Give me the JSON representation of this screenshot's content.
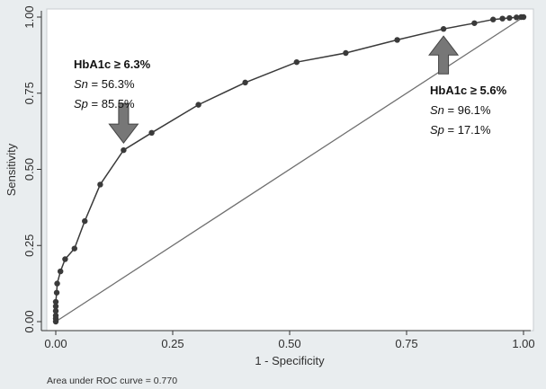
{
  "chart_data": {
    "type": "line",
    "title": "",
    "xlabel": "1 - Specificity",
    "ylabel": "Sensitivity",
    "xlim": [
      0,
      1
    ],
    "ylim": [
      0,
      1
    ],
    "xticks": [
      "0.00",
      "0.25",
      "0.50",
      "0.75",
      "1.00"
    ],
    "yticks": [
      "0.00",
      "0.25",
      "0.50",
      "0.75",
      "1.00"
    ],
    "grid": false,
    "legend": "none",
    "note": "Area under ROC curve = 0.770",
    "series": [
      {
        "type": "line",
        "points": [
          [
            0.0,
            0.0
          ],
          [
            0.0,
            0.01
          ],
          [
            0.0,
            0.02
          ],
          [
            0.0,
            0.035
          ],
          [
            0.0,
            0.05
          ],
          [
            0.0,
            0.065
          ],
          [
            0.002,
            0.095
          ],
          [
            0.003,
            0.125
          ],
          [
            0.01,
            0.165
          ],
          [
            0.02,
            0.205
          ],
          [
            0.04,
            0.24
          ],
          [
            0.062,
            0.33
          ],
          [
            0.095,
            0.45
          ],
          [
            0.145,
            0.563
          ],
          [
            0.205,
            0.62
          ],
          [
            0.305,
            0.712
          ],
          [
            0.405,
            0.785
          ],
          [
            0.515,
            0.852
          ],
          [
            0.62,
            0.882
          ],
          [
            0.73,
            0.925
          ],
          [
            0.829,
            0.961
          ],
          [
            0.895,
            0.98
          ],
          [
            0.935,
            0.992
          ],
          [
            0.955,
            0.995
          ],
          [
            0.97,
            0.997
          ],
          [
            0.985,
            0.999
          ],
          [
            0.995,
            1.0
          ],
          [
            1.0,
            1.0
          ]
        ]
      },
      {
        "type": "reference",
        "points": [
          [
            0,
            0
          ],
          [
            1,
            1
          ]
        ]
      }
    ],
    "annotations": [
      {
        "title": "HbA1c ≥ 6.3%",
        "sn_label": "Sn",
        "sn_value": " = 56.3%",
        "sp_label": "Sp",
        "sp_value": " = 85.5%",
        "point": [
          0.145,
          0.563
        ],
        "arrow": "down"
      },
      {
        "title": "HbA1c ≥ 5.6%",
        "sn_label": "Sn",
        "sn_value": " = 96.1%",
        "sp_label": "Sp",
        "sp_value": " = 17.1%",
        "point": [
          0.829,
          0.961
        ],
        "arrow": "up"
      }
    ],
    "colors": {
      "background": "#e9edef",
      "plot": "#ffffff",
      "line": "#3a3a3a",
      "marker": "#3a3a3a",
      "arrow_fill": "#777777"
    }
  }
}
